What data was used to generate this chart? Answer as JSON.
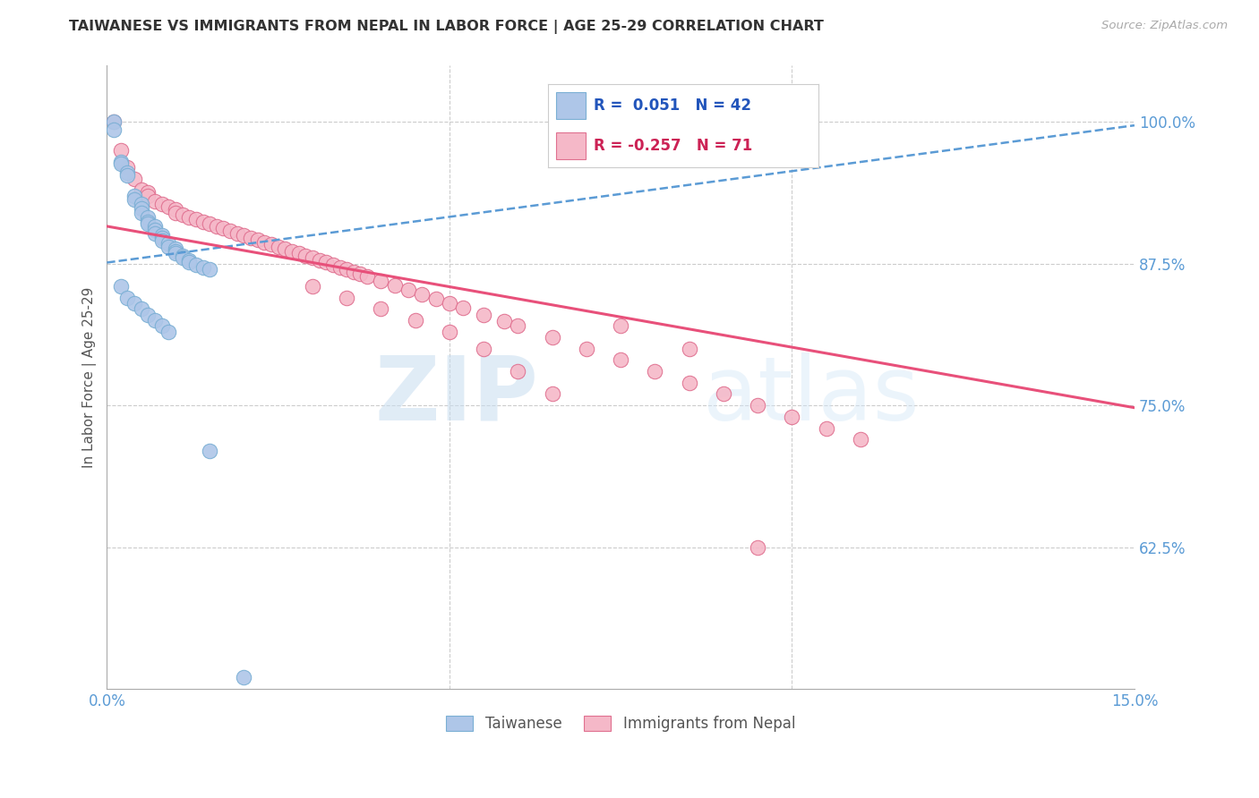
{
  "title": "TAIWANESE VS IMMIGRANTS FROM NEPAL IN LABOR FORCE | AGE 25-29 CORRELATION CHART",
  "source": "Source: ZipAtlas.com",
  "ylabel": "In Labor Force | Age 25-29",
  "xlim": [
    0.0,
    0.15
  ],
  "ylim": [
    0.5,
    1.05
  ],
  "ytick_labels_right": [
    "100.0%",
    "87.5%",
    "75.0%",
    "62.5%"
  ],
  "ytick_values_right": [
    1.0,
    0.875,
    0.75,
    0.625
  ],
  "background_color": "#ffffff",
  "grid_color": "#cccccc",
  "title_color": "#333333",
  "source_color": "#aaaaaa",
  "blue_color": "#aec6e8",
  "pink_color": "#f5b8c8",
  "blue_line_color": "#5b9bd5",
  "pink_line_color": "#e8507a",
  "blue_edge_color": "#7aafd4",
  "pink_edge_color": "#e07090",
  "blue_scatter_x": [
    0.001,
    0.001,
    0.002,
    0.002,
    0.003,
    0.003,
    0.004,
    0.004,
    0.005,
    0.005,
    0.005,
    0.006,
    0.006,
    0.006,
    0.007,
    0.007,
    0.007,
    0.008,
    0.008,
    0.008,
    0.009,
    0.009,
    0.01,
    0.01,
    0.01,
    0.011,
    0.011,
    0.012,
    0.012,
    0.013,
    0.014,
    0.015,
    0.002,
    0.003,
    0.004,
    0.005,
    0.006,
    0.007,
    0.008,
    0.009,
    0.015,
    0.02
  ],
  "blue_scatter_y": [
    1.0,
    0.993,
    0.965,
    0.963,
    0.955,
    0.953,
    0.935,
    0.932,
    0.928,
    0.924,
    0.92,
    0.916,
    0.912,
    0.91,
    0.908,
    0.905,
    0.902,
    0.9,
    0.898,
    0.895,
    0.893,
    0.89,
    0.888,
    0.886,
    0.884,
    0.882,
    0.88,
    0.878,
    0.876,
    0.874,
    0.872,
    0.87,
    0.855,
    0.845,
    0.84,
    0.835,
    0.83,
    0.825,
    0.82,
    0.815,
    0.71,
    0.51
  ],
  "pink_scatter_x": [
    0.001,
    0.002,
    0.003,
    0.004,
    0.005,
    0.006,
    0.006,
    0.007,
    0.008,
    0.009,
    0.01,
    0.01,
    0.011,
    0.012,
    0.013,
    0.014,
    0.015,
    0.016,
    0.017,
    0.018,
    0.019,
    0.02,
    0.021,
    0.022,
    0.023,
    0.024,
    0.025,
    0.026,
    0.027,
    0.028,
    0.029,
    0.03,
    0.031,
    0.032,
    0.033,
    0.034,
    0.035,
    0.036,
    0.037,
    0.038,
    0.04,
    0.042,
    0.044,
    0.046,
    0.048,
    0.05,
    0.052,
    0.055,
    0.058,
    0.06,
    0.065,
    0.07,
    0.075,
    0.08,
    0.085,
    0.09,
    0.095,
    0.1,
    0.105,
    0.11,
    0.03,
    0.035,
    0.04,
    0.045,
    0.05,
    0.055,
    0.06,
    0.065,
    0.075,
    0.085,
    0.095
  ],
  "pink_scatter_y": [
    1.0,
    0.975,
    0.96,
    0.95,
    0.94,
    0.938,
    0.935,
    0.93,
    0.928,
    0.925,
    0.923,
    0.92,
    0.918,
    0.916,
    0.914,
    0.912,
    0.91,
    0.908,
    0.906,
    0.904,
    0.902,
    0.9,
    0.898,
    0.896,
    0.894,
    0.892,
    0.89,
    0.888,
    0.886,
    0.884,
    0.882,
    0.88,
    0.878,
    0.876,
    0.874,
    0.872,
    0.87,
    0.868,
    0.866,
    0.864,
    0.86,
    0.856,
    0.852,
    0.848,
    0.844,
    0.84,
    0.836,
    0.83,
    0.824,
    0.82,
    0.81,
    0.8,
    0.79,
    0.78,
    0.77,
    0.76,
    0.75,
    0.74,
    0.73,
    0.72,
    0.855,
    0.845,
    0.835,
    0.825,
    0.815,
    0.8,
    0.78,
    0.76,
    0.82,
    0.8,
    0.625
  ],
  "blue_trendline_y": [
    0.876,
    0.997
  ],
  "pink_trendline_y": [
    0.908,
    0.748
  ],
  "watermark_zip": "ZIP",
  "watermark_atlas": "atlas"
}
